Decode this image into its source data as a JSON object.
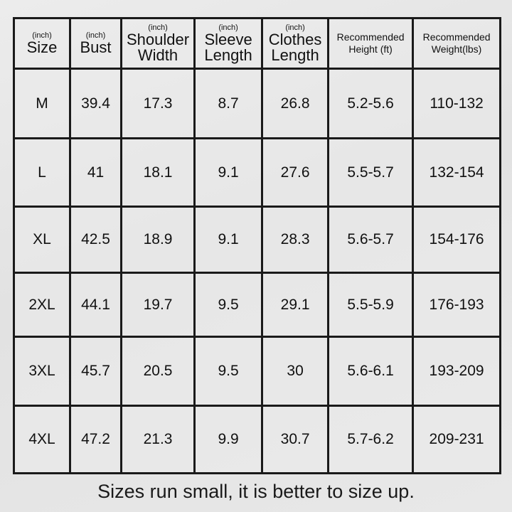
{
  "headers": [
    {
      "unit": "(inch)",
      "label": "Size"
    },
    {
      "unit": "(inch)",
      "label": "Bust"
    },
    {
      "unit": "(inch)",
      "label": "Shoulder Width"
    },
    {
      "unit": "(inch)",
      "label": "Sleeve Length"
    },
    {
      "unit": "(inch)",
      "label": "Clothes Length"
    },
    {
      "unit": "",
      "label": "Recommended Height (ft)"
    },
    {
      "unit": "",
      "label": "Recommended Weight(lbs)"
    }
  ],
  "rows": [
    [
      "M",
      "39.4",
      "17.3",
      "8.7",
      "26.8",
      "5.2-5.6",
      "110-132"
    ],
    [
      "L",
      "41",
      "18.1",
      "9.1",
      "27.6",
      "5.5-5.7",
      "132-154"
    ],
    [
      "XL",
      "42.5",
      "18.9",
      "9.1",
      "28.3",
      "5.6-5.7",
      "154-176"
    ],
    [
      "2XL",
      "44.1",
      "19.7",
      "9.5",
      "29.1",
      "5.5-5.9",
      "176-193"
    ],
    [
      "3XL",
      "45.7",
      "20.5",
      "9.5",
      "30",
      "5.6-6.1",
      "193-209"
    ],
    [
      "4XL",
      "47.2",
      "21.3",
      "9.9",
      "30.7",
      "5.7-6.2",
      "209-231"
    ]
  ],
  "caption": "Sizes run small, it is better to size up."
}
